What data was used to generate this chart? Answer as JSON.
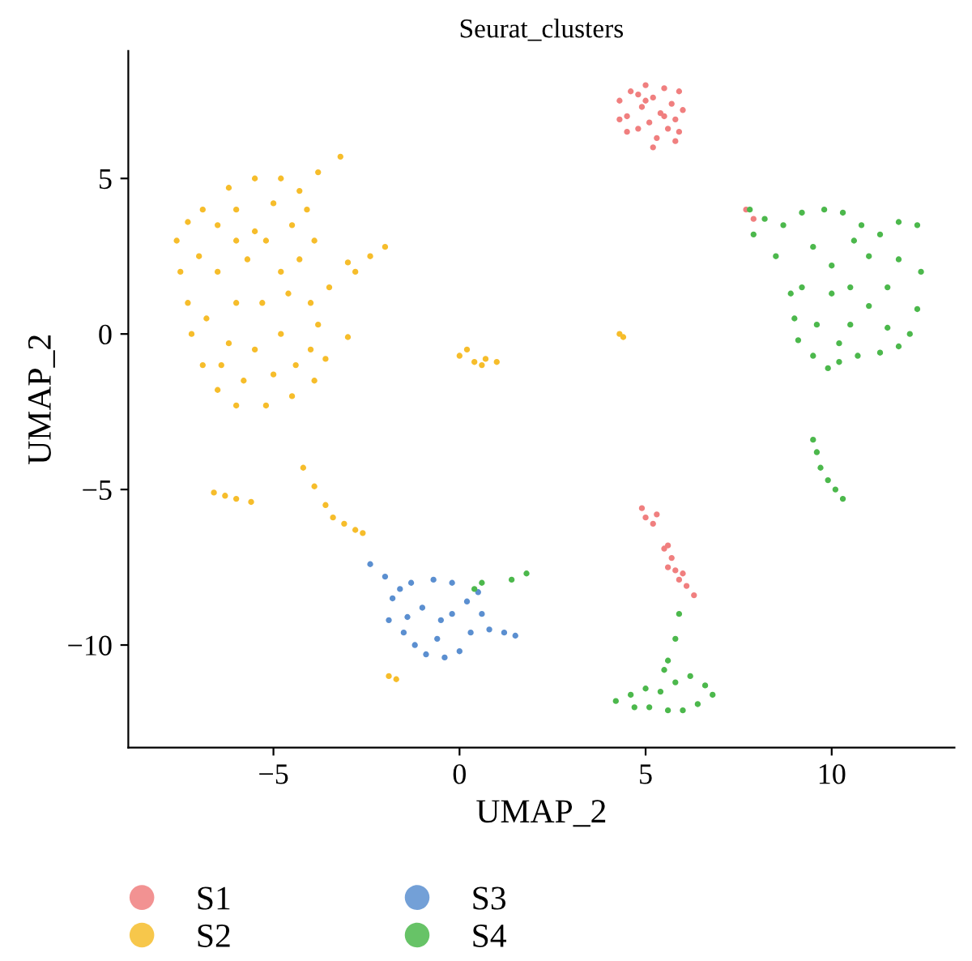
{
  "chart_data": {
    "type": "scatter",
    "title": "Seurat_clusters",
    "xlabel": "UMAP_2",
    "ylabel": "UMAP_2",
    "xlim": [
      -8.9,
      13.3
    ],
    "ylim": [
      -13.3,
      9.1
    ],
    "xticks": [
      -5,
      0,
      5,
      10
    ],
    "yticks": [
      -10,
      -5,
      0,
      5
    ],
    "grid": false,
    "legend": "bottom",
    "marker": "circle",
    "series": [
      {
        "name": "S1",
        "color": "#f07f7f",
        "x": [
          4.3,
          4.5,
          4.6,
          4.8,
          4.9,
          5.0,
          5.1,
          5.2,
          5.3,
          5.4,
          5.5,
          5.6,
          5.7,
          5.8,
          5.9,
          6.0,
          5.8,
          5.2,
          4.5,
          4.3,
          5.0,
          5.5,
          4.8,
          5.9,
          4.9,
          5.0,
          5.2,
          5.3,
          5.6,
          5.7,
          5.8,
          5.9,
          6.1,
          6.3,
          5.6,
          6.0,
          5.5,
          7.7,
          7.9
        ],
        "values": [
          7.5,
          7.0,
          7.8,
          6.6,
          7.3,
          8.0,
          6.8,
          7.6,
          6.3,
          7.1,
          7.9,
          6.6,
          7.4,
          6.9,
          7.8,
          7.2,
          6.2,
          6.0,
          6.5,
          6.9,
          7.5,
          7.0,
          7.7,
          6.5,
          -5.6,
          -5.9,
          -6.1,
          -5.8,
          -6.8,
          -7.2,
          -7.6,
          -7.9,
          -8.1,
          -8.4,
          -7.5,
          -7.7,
          -6.9,
          4.0,
          3.7
        ]
      },
      {
        "name": "S2",
        "color": "#f6bd2b",
        "x": [
          -7.6,
          -7.5,
          -7.3,
          -7.2,
          -6.9,
          -6.5,
          -6.0,
          -5.2,
          -4.5,
          -3.9,
          -3.6,
          -3.8,
          -4.0,
          -3.5,
          -2.8,
          -2.0,
          -2.4,
          -3.0,
          -3.9,
          -4.1,
          -4.3,
          -3.8,
          -3.2,
          -4.8,
          -5.5,
          -6.2,
          -6.9,
          -7.3,
          -7.0,
          -6.5,
          -6.0,
          -5.0,
          -4.5,
          -5.5,
          -6.5,
          -6.0,
          -5.3,
          -4.8,
          -5.7,
          -4.3,
          -6.8,
          -6.2,
          -5.5,
          -4.8,
          -4.4,
          -5.8,
          -5.0,
          -6.4,
          -4.6,
          -5.2,
          -6.0,
          -3.0,
          -4.0,
          0.0,
          0.4,
          0.7,
          1.0,
          0.6,
          0.2,
          4.3,
          4.4,
          -6.6,
          -6.3,
          -6.0,
          -5.6,
          -4.2,
          -3.9,
          -3.6,
          -3.4,
          -3.1,
          -2.8,
          -2.6,
          -1.9,
          -1.7
        ],
        "values": [
          3.0,
          2.0,
          1.0,
          0.0,
          -1.0,
          -1.8,
          -2.3,
          -2.3,
          -2.0,
          -1.5,
          -0.8,
          0.3,
          1.0,
          1.5,
          2.0,
          2.8,
          2.5,
          2.3,
          3.0,
          4.0,
          4.6,
          5.2,
          5.7,
          5.0,
          5.0,
          4.7,
          4.0,
          3.6,
          2.5,
          3.5,
          4.0,
          4.2,
          3.5,
          3.3,
          2.0,
          1.0,
          1.0,
          2.0,
          2.4,
          2.4,
          0.5,
          -0.3,
          -0.5,
          0.0,
          -1.0,
          -1.5,
          -1.3,
          -1.0,
          1.3,
          3.0,
          3.0,
          -0.1,
          -0.5,
          -0.7,
          -0.9,
          -0.8,
          -0.9,
          -1.0,
          -0.5,
          0.0,
          -0.1,
          -5.1,
          -5.2,
          -5.3,
          -5.4,
          -4.3,
          -4.9,
          -5.5,
          -5.9,
          -6.1,
          -6.3,
          -6.4,
          -11.0,
          -11.1
        ]
      },
      {
        "name": "S3",
        "color": "#5b8fd0",
        "x": [
          -2.4,
          -2.0,
          -1.8,
          -1.9,
          -1.5,
          -1.2,
          -0.9,
          -0.4,
          0.0,
          0.3,
          0.8,
          1.2,
          1.5,
          0.6,
          0.2,
          -0.2,
          -0.7,
          -1.3,
          -1.0,
          -0.5,
          -1.4,
          -0.6,
          -0.2,
          0.5,
          -1.6
        ],
        "values": [
          -7.4,
          -7.8,
          -8.5,
          -9.2,
          -9.6,
          -10.0,
          -10.3,
          -10.4,
          -10.2,
          -9.6,
          -9.5,
          -9.6,
          -9.7,
          -9.0,
          -8.6,
          -8.0,
          -7.9,
          -8.0,
          -8.8,
          -9.2,
          -9.1,
          -9.8,
          -9.0,
          -8.3,
          -8.2
        ]
      },
      {
        "name": "S4",
        "color": "#4cb84c",
        "x": [
          7.8,
          8.2,
          8.7,
          9.2,
          9.8,
          10.3,
          10.8,
          11.3,
          11.8,
          12.3,
          12.4,
          12.3,
          12.1,
          11.8,
          11.3,
          10.7,
          10.2,
          9.9,
          9.5,
          9.1,
          9.0,
          8.9,
          8.5,
          7.9,
          9.5,
          10.0,
          10.5,
          11.0,
          11.5,
          10.0,
          9.6,
          10.5,
          11.0,
          11.8,
          10.6,
          9.2,
          10.2,
          11.5,
          9.5,
          9.6,
          9.7,
          9.9,
          10.1,
          10.3,
          4.2,
          4.6,
          5.0,
          5.4,
          5.8,
          6.2,
          6.6,
          6.8,
          6.4,
          6.0,
          5.6,
          5.1,
          4.7,
          5.6,
          5.8,
          5.9,
          5.5,
          0.4,
          0.6,
          1.4,
          1.8
        ],
        "values": [
          4.0,
          3.7,
          3.5,
          3.9,
          4.0,
          3.9,
          3.5,
          3.2,
          3.6,
          3.5,
          2.0,
          0.8,
          0.0,
          -0.4,
          -0.6,
          -0.7,
          -0.9,
          -1.1,
          -0.7,
          -0.2,
          0.5,
          1.3,
          2.5,
          3.2,
          2.8,
          2.2,
          1.5,
          2.5,
          1.5,
          1.3,
          0.3,
          0.3,
          0.9,
          2.4,
          3.0,
          1.5,
          -0.3,
          0.2,
          -3.4,
          -3.8,
          -4.3,
          -4.7,
          -5.0,
          -5.3,
          -11.8,
          -11.6,
          -11.4,
          -11.5,
          -11.2,
          -11.0,
          -11.3,
          -11.6,
          -11.9,
          -12.1,
          -12.1,
          -12.0,
          -12.0,
          -10.5,
          -9.8,
          -9.0,
          -10.8,
          -8.2,
          -8.0,
          -7.9,
          -7.7
        ]
      }
    ]
  }
}
